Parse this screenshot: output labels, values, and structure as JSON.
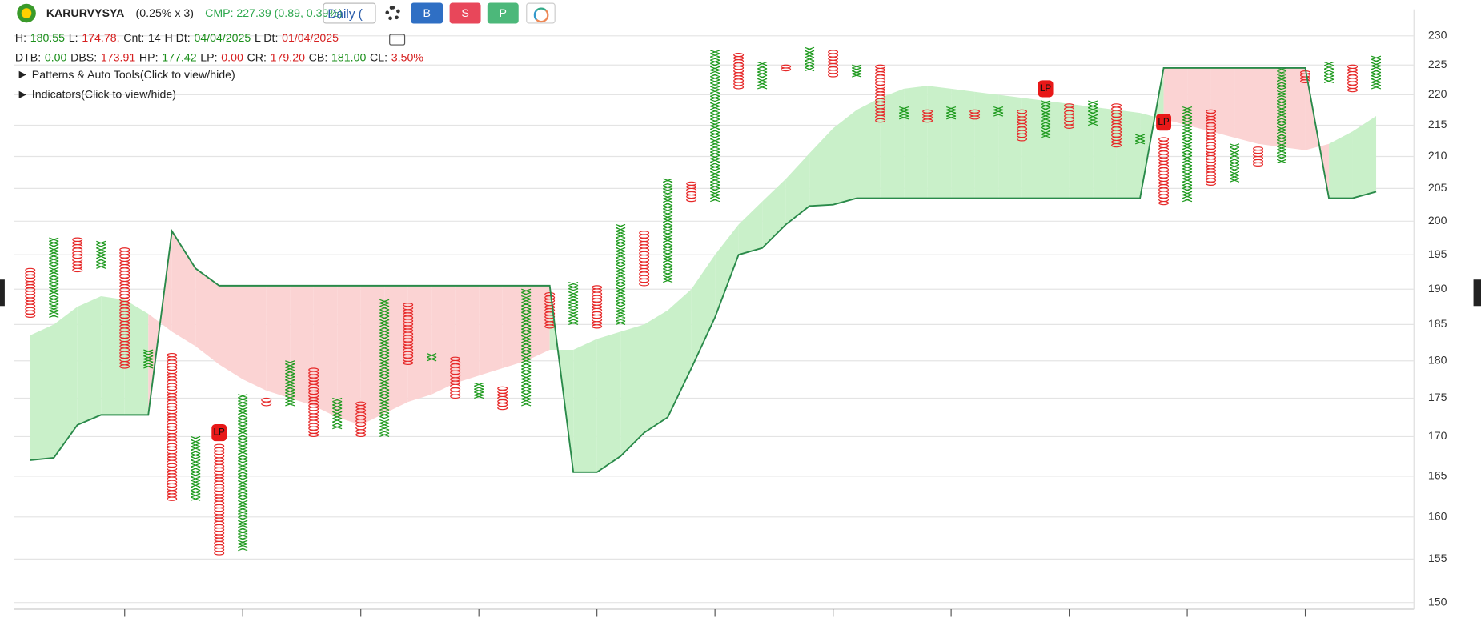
{
  "header": {
    "symbol": "KARURVYSYA",
    "box": "(0.25% x 3)",
    "cmp": "CMP: 227.39 (0.89, 0.39%)",
    "interval": "Daily (",
    "buttons": [
      "B",
      "S",
      "P"
    ],
    "info1": [
      {
        "label": "H:",
        "value": "180.55",
        "color": "#1a8f1a"
      },
      {
        "label": "L:",
        "value": "174.78,",
        "color": "#d62020"
      },
      {
        "label": "Cnt:",
        "value": "14",
        "color": "#222"
      },
      {
        "label": "H Dt:",
        "value": "04/04/2025",
        "color": "#1a8f1a"
      },
      {
        "label": "L Dt:",
        "value": "01/04/2025",
        "color": "#d62020"
      }
    ],
    "info2": [
      {
        "label": "DTB:",
        "value": "0.00",
        "color": "#1a8f1a"
      },
      {
        "label": "DBS:",
        "value": "173.91",
        "color": "#d62020"
      },
      {
        "label": "HP:",
        "value": "177.42",
        "color": "#1a8f1a"
      },
      {
        "label": "LP:",
        "value": "0.00",
        "color": "#d62020"
      },
      {
        "label": "CR:",
        "value": "179.20",
        "color": "#d62020"
      },
      {
        "label": "CB:",
        "value": "181.00",
        "color": "#1a8f1a"
      },
      {
        "label": "CL:",
        "value": "3.50%",
        "color": "#d62020"
      }
    ],
    "toggles": [
      "Patterns & Auto Tools(Click to view/hide)",
      "Indicators(Click to view/hide)"
    ]
  },
  "chart_data": {
    "type": "pnf",
    "log_scale": true,
    "grid": true,
    "box_pct": 0.25,
    "ylim": [
      149.25,
      234.3
    ],
    "yticks": [
      150,
      155,
      160,
      165,
      170,
      175,
      180,
      185,
      190,
      195,
      200,
      205,
      210,
      215,
      220,
      225,
      230
    ],
    "x_color": "#1e9a1e",
    "o_color": "#e62828",
    "columns": [
      {
        "type": "O",
        "low": 186,
        "high": 193
      },
      {
        "type": "X",
        "low": 186,
        "high": 197.5
      },
      {
        "type": "O",
        "low": 192.5,
        "high": 197.5
      },
      {
        "type": "X",
        "low": 193,
        "high": 197
      },
      {
        "type": "O",
        "low": 179,
        "high": 196
      },
      {
        "type": "X",
        "low": 179,
        "high": 181.5
      },
      {
        "type": "O",
        "low": 162,
        "high": 181
      },
      {
        "type": "X",
        "low": 162,
        "high": 170
      },
      {
        "type": "O",
        "low": 155.5,
        "high": 169
      },
      {
        "type": "X",
        "low": 156,
        "high": 175.5
      },
      {
        "type": "O",
        "low": 174,
        "high": 175
      },
      {
        "type": "X",
        "low": 174,
        "high": 180
      },
      {
        "type": "O",
        "low": 170,
        "high": 179
      },
      {
        "type": "X",
        "low": 171,
        "high": 175
      },
      {
        "type": "O",
        "low": 170,
        "high": 174.5
      },
      {
        "type": "X",
        "low": 170,
        "high": 188.5
      },
      {
        "type": "O",
        "low": 179.5,
        "high": 188
      },
      {
        "type": "X",
        "low": 180,
        "high": 181
      },
      {
        "type": "O",
        "low": 175,
        "high": 180.5
      },
      {
        "type": "X",
        "low": 175,
        "high": 177
      },
      {
        "type": "O",
        "low": 173.5,
        "high": 176.5
      },
      {
        "type": "X",
        "low": 174,
        "high": 190
      },
      {
        "type": "O",
        "low": 184.5,
        "high": 189.5
      },
      {
        "type": "X",
        "low": 185,
        "high": 191
      },
      {
        "type": "O",
        "low": 184.5,
        "high": 190.5
      },
      {
        "type": "X",
        "low": 185,
        "high": 199.5
      },
      {
        "type": "O",
        "low": 190.5,
        "high": 198.5
      },
      {
        "type": "X",
        "low": 191,
        "high": 206.5
      },
      {
        "type": "O",
        "low": 203,
        "high": 206
      },
      {
        "type": "X",
        "low": 203,
        "high": 227.5
      },
      {
        "type": "O",
        "low": 221,
        "high": 227
      },
      {
        "type": "X",
        "low": 221,
        "high": 225.5
      },
      {
        "type": "O",
        "low": 224,
        "high": 225
      },
      {
        "type": "X",
        "low": 224,
        "high": 228
      },
      {
        "type": "O",
        "low": 223,
        "high": 227.5
      },
      {
        "type": "X",
        "low": 223,
        "high": 225
      },
      {
        "type": "O",
        "low": 215.5,
        "high": 225
      },
      {
        "type": "X",
        "low": 216,
        "high": 218
      },
      {
        "type": "O",
        "low": 215.5,
        "high": 217.5
      },
      {
        "type": "X",
        "low": 216,
        "high": 218
      },
      {
        "type": "O",
        "low": 216,
        "high": 217.5
      },
      {
        "type": "X",
        "low": 216.5,
        "high": 218
      },
      {
        "type": "O",
        "low": 212.5,
        "high": 217.5
      },
      {
        "type": "X",
        "low": 213,
        "high": 219
      },
      {
        "type": "O",
        "low": 214.5,
        "high": 218.5
      },
      {
        "type": "X",
        "low": 215,
        "high": 219
      },
      {
        "type": "O",
        "low": 211.5,
        "high": 218.5
      },
      {
        "type": "X",
        "low": 212,
        "high": 213.5
      },
      {
        "type": "O",
        "low": 202.5,
        "high": 213
      },
      {
        "type": "X",
        "low": 203,
        "high": 218
      },
      {
        "type": "O",
        "low": 205.5,
        "high": 217.5
      },
      {
        "type": "X",
        "low": 206,
        "high": 212
      },
      {
        "type": "O",
        "low": 208.5,
        "high": 211.5
      },
      {
        "type": "X",
        "low": 209,
        "high": 224.5
      },
      {
        "type": "O",
        "low": 222,
        "high": 224
      },
      {
        "type": "X",
        "low": 222,
        "high": 225.5
      },
      {
        "type": "O",
        "low": 220.5,
        "high": 225
      },
      {
        "type": "X",
        "low": 221,
        "high": 226.5
      }
    ],
    "series": [
      {
        "name": "line",
        "color": "#2a8a4a",
        "values": [
          167,
          167.3,
          171.5,
          172.8,
          172.8,
          172.8,
          198.5,
          193,
          190.5,
          190.5,
          190.5,
          190.5,
          190.5,
          190.5,
          190.5,
          190.5,
          190.5,
          190.5,
          190.5,
          190.5,
          190.5,
          190.5,
          190.5,
          165.5,
          165.5,
          167.5,
          170.5,
          172.5,
          179,
          186,
          195,
          196,
          199.5,
          202.3,
          202.5,
          203.5,
          203.5,
          203.5,
          203.5,
          203.5,
          203.5,
          203.5,
          203.5,
          203.5,
          203.5,
          203.5,
          203.5,
          203.5,
          224.5,
          224.5,
          224.5,
          224.5,
          224.5,
          224.5,
          224.5,
          203.5,
          203.5,
          204.5
        ]
      },
      {
        "name": "cloud",
        "color": "#cfeecf",
        "values": [
          183.5,
          185,
          187.5,
          189,
          188.5,
          186.5,
          184,
          182,
          179.5,
          177.5,
          176,
          175,
          174,
          172.5,
          171.5,
          173,
          174.5,
          175.5,
          177,
          178,
          179,
          180,
          181.5,
          181.5,
          183,
          184,
          185,
          187,
          190,
          195,
          199.5,
          203,
          206.5,
          210.5,
          214.5,
          217.5,
          219.5,
          221,
          221.5,
          221,
          220.5,
          220,
          219.5,
          219,
          218.5,
          218,
          217.5,
          217,
          216,
          215,
          214,
          213,
          212,
          211.5,
          211,
          212,
          214,
          216.5
        ]
      }
    ],
    "fill_up": "#c9f0c9",
    "fill_down": "#fbd3d3",
    "annotations": [
      {
        "text": "LP",
        "column": 8,
        "value": 170.5
      },
      {
        "text": "LP",
        "column": 43,
        "value": 221
      },
      {
        "text": "LP",
        "column": 48,
        "value": 215.5
      }
    ]
  }
}
